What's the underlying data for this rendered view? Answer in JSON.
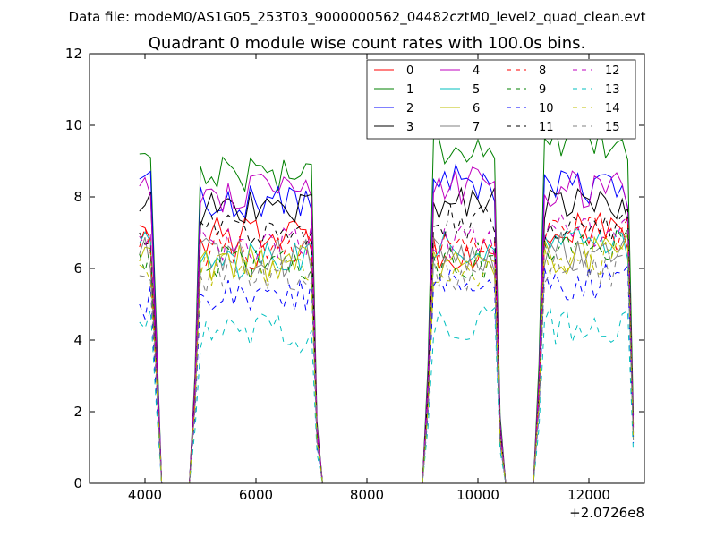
{
  "figure": {
    "suptitle": "Data file: modeM0/AS1G05_253T03_9000000562_04482cztM0_level2_quad_clean.evt"
  },
  "chart_data": {
    "type": "line",
    "title": "Quadrant 0 module wise count rates with 100.0s bins.",
    "xlabel": "",
    "ylabel": "",
    "x_offset_label": "+2.0726e8",
    "xlim": [
      3000,
      13000
    ],
    "ylim": [
      0,
      12
    ],
    "x_ticks": [
      4000,
      6000,
      8000,
      10000,
      12000
    ],
    "x_tick_labels": [
      "4000",
      "6000",
      "8000",
      "10000",
      "12000"
    ],
    "y_ticks": [
      0,
      2,
      4,
      6,
      8,
      10,
      12
    ],
    "y_tick_labels": [
      "0",
      "2",
      "4",
      "6",
      "8",
      "10",
      "12"
    ],
    "grid": false,
    "legend_position": "top-right",
    "legend_columns": 4,
    "segments": [
      {
        "x_start": 3900,
        "x_end": 4300
      },
      {
        "x_start": 4900,
        "x_end": 7100
      },
      {
        "x_start": 9100,
        "x_end": 10400
      },
      {
        "x_start": 11100,
        "x_end": 12800
      }
    ],
    "series": [
      {
        "name": "0",
        "color": "#ff0000",
        "dash": "solid",
        "levels": [
          7.2,
          6.9,
          6.5,
          7.0
        ]
      },
      {
        "name": "1",
        "color": "#008000",
        "dash": "solid",
        "levels": [
          9.2,
          8.7,
          9.4,
          9.5
        ]
      },
      {
        "name": "2",
        "color": "#0000ff",
        "dash": "solid",
        "levels": [
          8.5,
          7.9,
          8.4,
          8.2
        ]
      },
      {
        "name": "3",
        "color": "#000000",
        "dash": "solid",
        "levels": [
          7.6,
          7.7,
          7.9,
          7.8
        ]
      },
      {
        "name": "4",
        "color": "#bf00bf",
        "dash": "solid",
        "levels": [
          8.3,
          8.1,
          8.3,
          8.2
        ]
      },
      {
        "name": "5",
        "color": "#00bfbf",
        "dash": "solid",
        "levels": [
          6.7,
          6.2,
          6.6,
          6.8
        ]
      },
      {
        "name": "6",
        "color": "#bfbf00",
        "dash": "solid",
        "levels": [
          6.2,
          6.1,
          6.1,
          6.4
        ]
      },
      {
        "name": "7",
        "color": "#808080",
        "dash": "solid",
        "levels": [
          6.4,
          6.3,
          6.4,
          6.5
        ]
      },
      {
        "name": "8",
        "color": "#ff0000",
        "dash": "dashed",
        "levels": [
          6.6,
          6.5,
          6.4,
          6.9
        ]
      },
      {
        "name": "9",
        "color": "#008000",
        "dash": "dashed",
        "levels": [
          6.4,
          6.2,
          6.2,
          6.6
        ]
      },
      {
        "name": "10",
        "color": "#0000ff",
        "dash": "dashed",
        "levels": [
          5.0,
          5.3,
          5.5,
          5.6
        ]
      },
      {
        "name": "11",
        "color": "#000000",
        "dash": "dashed",
        "levels": [
          7.0,
          7.1,
          7.3,
          7.2
        ]
      },
      {
        "name": "12",
        "color": "#bf00bf",
        "dash": "dashed",
        "levels": [
          6.9,
          6.7,
          6.8,
          7.0
        ]
      },
      {
        "name": "13",
        "color": "#00bfbf",
        "dash": "dashed",
        "levels": [
          4.5,
          4.2,
          4.5,
          4.4
        ]
      },
      {
        "name": "14",
        "color": "#bfbf00",
        "dash": "dashed",
        "levels": [
          6.1,
          6.0,
          6.0,
          6.2
        ]
      },
      {
        "name": "15",
        "color": "#808080",
        "dash": "dashed",
        "levels": [
          5.8,
          5.8,
          5.9,
          6.0
        ]
      }
    ]
  }
}
